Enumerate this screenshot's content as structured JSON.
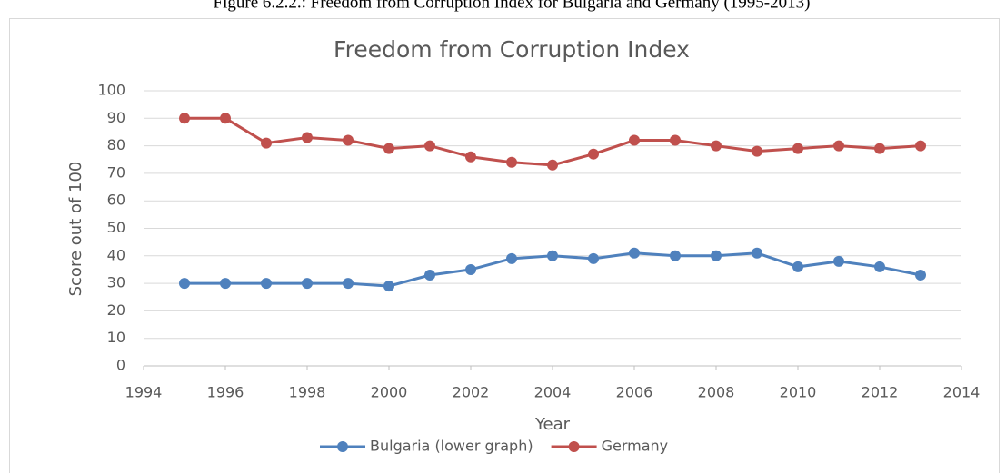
{
  "caption": "Figure 6.2.2.: Freedom from Corruption Index for Bulgaria and Germany (1995-2013)",
  "chart_data": {
    "type": "line",
    "title": "Freedom from Corruption Index",
    "x_label": "Year",
    "y_label": "Score out of 100",
    "x": [
      1995,
      1996,
      1997,
      1998,
      1999,
      2000,
      2001,
      2002,
      2003,
      2004,
      2005,
      2006,
      2007,
      2008,
      2009,
      2010,
      2011,
      2012,
      2013
    ],
    "series": [
      {
        "name": "Bulgaria (lower graph)",
        "color": "#4f81bd",
        "values": [
          30,
          30,
          30,
          30,
          30,
          29,
          33,
          35,
          39,
          40,
          39,
          41,
          40,
          40,
          41,
          36,
          38,
          36,
          33
        ]
      },
      {
        "name": "Germany",
        "color": "#c0504d",
        "values": [
          90,
          90,
          81,
          83,
          82,
          79,
          80,
          76,
          74,
          73,
          77,
          82,
          82,
          80,
          78,
          79,
          80,
          79,
          80
        ]
      }
    ],
    "xlim": [
      1994,
      2014
    ],
    "xticks": [
      1994,
      1996,
      1998,
      2000,
      2002,
      2004,
      2006,
      2008,
      2010,
      2012,
      2014
    ],
    "ylim": [
      0,
      100
    ],
    "yticks": [
      0,
      10,
      20,
      30,
      40,
      50,
      60,
      70,
      80,
      90,
      100
    ],
    "grid": true,
    "legend": "bottom"
  }
}
